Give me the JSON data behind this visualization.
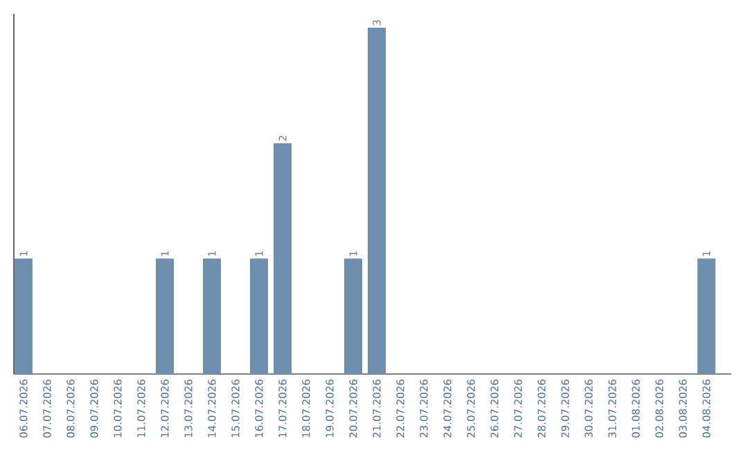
{
  "chart_data": {
    "type": "bar",
    "color": "#6e8fad",
    "categories": [
      "06.07.2026",
      "07.07.2026",
      "08.07.2026",
      "09.07.2026",
      "10.07.2026",
      "11.07.2026",
      "12.07.2026",
      "13.07.2026",
      "14.07.2026",
      "15.07.2026",
      "16.07.2026",
      "17.07.2026",
      "18.07.2026",
      "19.07.2026",
      "20.07.2026",
      "21.07.2026",
      "22.07.2026",
      "23.07.2026",
      "24.07.2026",
      "25.07.2026",
      "26.07.2026",
      "27.07.2026",
      "28.07.2026",
      "29.07.2026",
      "30.07.2026",
      "31.07.2026",
      "01.08.2026",
      "02.08.2026",
      "03.08.2026",
      "04.08.2026"
    ],
    "values": [
      1,
      0,
      0,
      0,
      0,
      0,
      1,
      0,
      1,
      0,
      1,
      2,
      0,
      0,
      1,
      3,
      0,
      0,
      0,
      0,
      0,
      0,
      0,
      0,
      0,
      0,
      0,
      0,
      0,
      1
    ],
    "value_labels": [
      "1",
      null,
      null,
      null,
      null,
      null,
      "1",
      null,
      "1",
      null,
      "1",
      "2",
      null,
      null,
      "1",
      "3",
      null,
      null,
      null,
      null,
      null,
      null,
      null,
      null,
      null,
      null,
      null,
      null,
      null,
      "1"
    ],
    "ylim": [
      0,
      3.12
    ]
  }
}
